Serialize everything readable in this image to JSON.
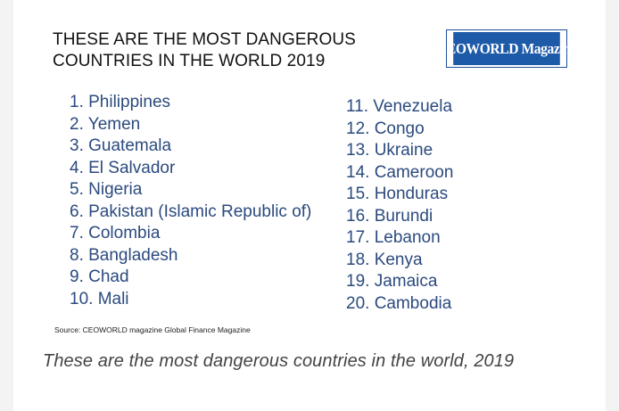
{
  "figure": {
    "title_line1": "THESE ARE THE MOST DANGEROUS",
    "title_line2": "COUNTRIES IN THE WORLD 2019",
    "logo_text": "CEOWORLD Magazine",
    "colors": {
      "list_text": "#2b4a7e",
      "logo_bg": "#1d5aa8"
    },
    "left_list": [
      "1. Philippines",
      "2. Yemen",
      "3. Guatemala",
      "4. El Salvador",
      "5. Nigeria",
      "6. Pakistan (Islamic Republic of)",
      "7. Colombia",
      "8. Bangladesh",
      "9. Chad",
      "10. Mali"
    ],
    "right_list": [
      "11. Venezuela",
      "12. Congo",
      "13. Ukraine",
      "14. Cameroon",
      "15. Honduras",
      "16. Burundi",
      "17. Lebanon",
      "18. Kenya",
      "19. Jamaica",
      "20. Cambodia"
    ],
    "source": "Source: CEOWORLD magazine Global Finance Magazine"
  },
  "caption": "These are the most dangerous countries in the world, 2019"
}
